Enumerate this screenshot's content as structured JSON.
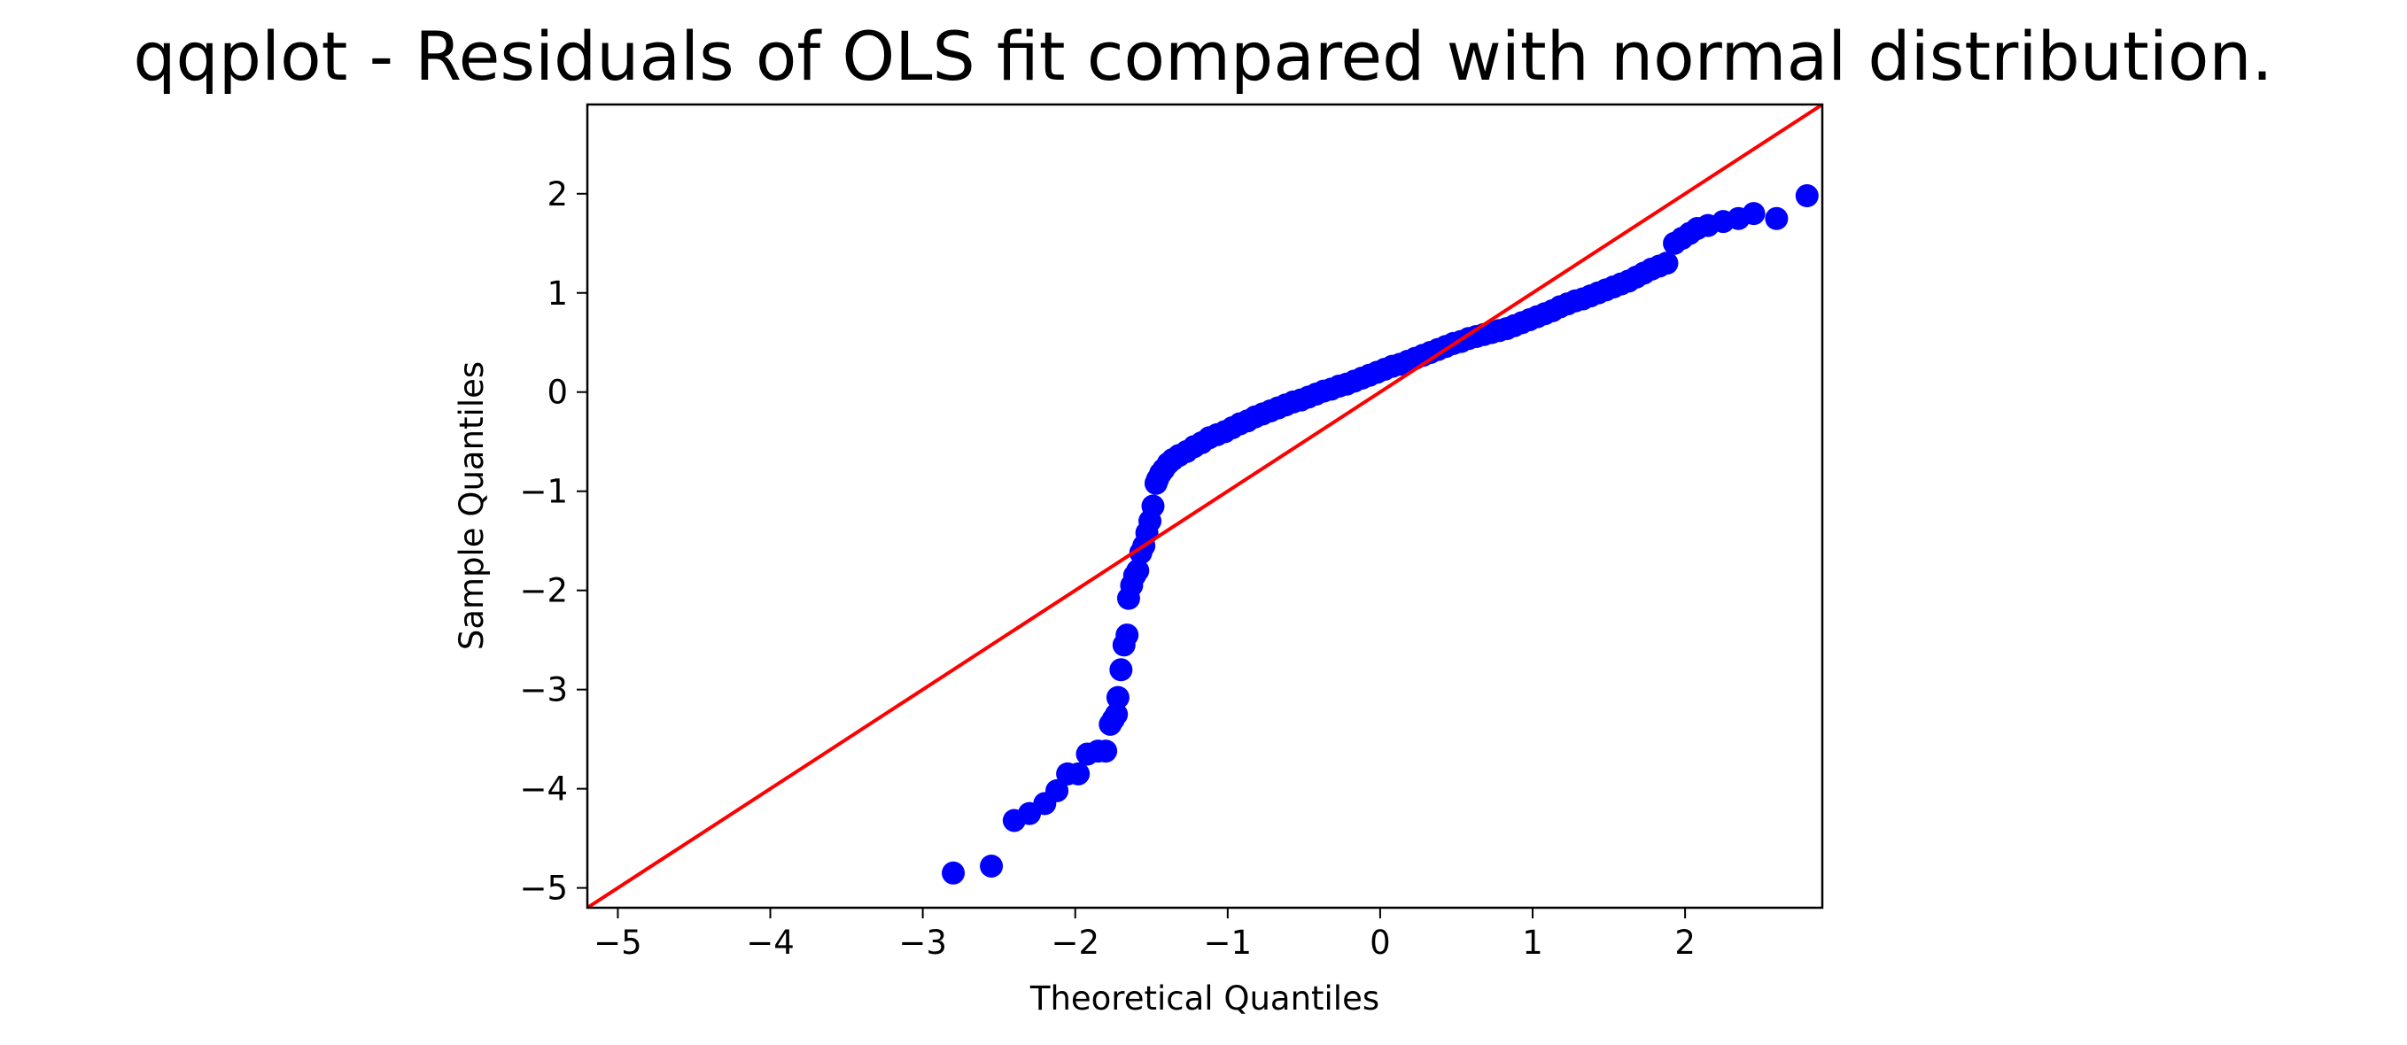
{
  "chart_data": {
    "type": "scatter",
    "title": "qqplot - Residuals of OLS fit compared with normal distribution.",
    "xlabel": "Theoretical Quantiles",
    "ylabel": "Sample Quantiles",
    "xlim": [
      -5.2,
      2.9
    ],
    "ylim": [
      -5.2,
      2.9
    ],
    "xticks": [
      -5,
      -4,
      -3,
      -2,
      -1,
      0,
      1,
      2
    ],
    "yticks": [
      -5,
      -4,
      -3,
      -2,
      -1,
      0,
      1,
      2
    ],
    "xtick_labels": [
      "−5",
      "−4",
      "−3",
      "−2",
      "−1",
      "0",
      "1",
      "2"
    ],
    "ytick_labels": [
      "−5",
      "−4",
      "−3",
      "−2",
      "−1",
      "0",
      "1",
      "2"
    ],
    "grid": false,
    "reference_line": {
      "type": "45-degree",
      "slope": 1,
      "intercept": 0,
      "color": "#ff0000"
    },
    "marker_color": "#0000ff",
    "points": {
      "x": [
        -2.8,
        -2.55,
        -2.4,
        -2.3,
        -2.2,
        -2.12,
        -2.05,
        -1.98,
        -1.92,
        -1.85,
        -1.8,
        -1.77,
        -1.75,
        -1.73,
        -1.72,
        -1.7,
        -1.68,
        -1.66,
        -1.65,
        -1.63,
        -1.61,
        -1.59,
        -1.57,
        -1.55,
        -1.53,
        -1.51,
        -1.49,
        -1.47,
        -1.46,
        -1.44,
        -1.42,
        -1.39,
        -1.36,
        -1.32,
        -1.27,
        -1.22,
        -1.17,
        -1.12,
        -1.07,
        -1.02,
        -0.97,
        -0.92,
        -0.87,
        -0.82,
        -0.77,
        -0.72,
        -0.67,
        -0.62,
        -0.57,
        -0.52,
        -0.47,
        -0.42,
        -0.37,
        -0.32,
        -0.27,
        -0.22,
        -0.17,
        -0.12,
        -0.07,
        -0.02,
        0.03,
        0.08,
        0.13,
        0.18,
        0.23,
        0.28,
        0.33,
        0.38,
        0.43,
        0.48,
        0.53,
        0.58,
        0.63,
        0.68,
        0.73,
        0.78,
        0.83,
        0.88,
        0.93,
        0.98,
        1.03,
        1.08,
        1.13,
        1.18,
        1.23,
        1.28,
        1.33,
        1.38,
        1.43,
        1.48,
        1.53,
        1.58,
        1.63,
        1.68,
        1.73,
        1.78,
        1.83,
        1.88,
        1.93,
        1.98,
        2.03,
        2.08,
        2.15,
        2.25,
        2.35,
        2.45,
        2.6,
        2.8
      ],
      "y": [
        -4.85,
        -4.78,
        -4.32,
        -4.25,
        -4.15,
        -4.02,
        -3.85,
        -3.85,
        -3.65,
        -3.62,
        -3.62,
        -3.35,
        -3.3,
        -3.25,
        -3.08,
        -2.8,
        -2.55,
        -2.45,
        -2.08,
        -1.95,
        -1.85,
        -1.8,
        -1.62,
        -1.55,
        -1.42,
        -1.3,
        -1.15,
        -0.92,
        -0.88,
        -0.82,
        -0.78,
        -0.72,
        -0.68,
        -0.64,
        -0.6,
        -0.55,
        -0.51,
        -0.46,
        -0.43,
        -0.4,
        -0.36,
        -0.32,
        -0.29,
        -0.25,
        -0.22,
        -0.19,
        -0.16,
        -0.13,
        -0.1,
        -0.08,
        -0.05,
        -0.02,
        0.01,
        0.03,
        0.06,
        0.08,
        0.11,
        0.14,
        0.17,
        0.2,
        0.23,
        0.26,
        0.28,
        0.31,
        0.34,
        0.37,
        0.4,
        0.43,
        0.46,
        0.49,
        0.51,
        0.54,
        0.56,
        0.58,
        0.6,
        0.62,
        0.64,
        0.67,
        0.7,
        0.73,
        0.76,
        0.79,
        0.82,
        0.86,
        0.89,
        0.92,
        0.94,
        0.97,
        1.0,
        1.03,
        1.06,
        1.09,
        1.12,
        1.16,
        1.2,
        1.24,
        1.27,
        1.3,
        1.5,
        1.55,
        1.6,
        1.65,
        1.68,
        1.72,
        1.75,
        1.8,
        1.75,
        1.98
      ]
    }
  }
}
